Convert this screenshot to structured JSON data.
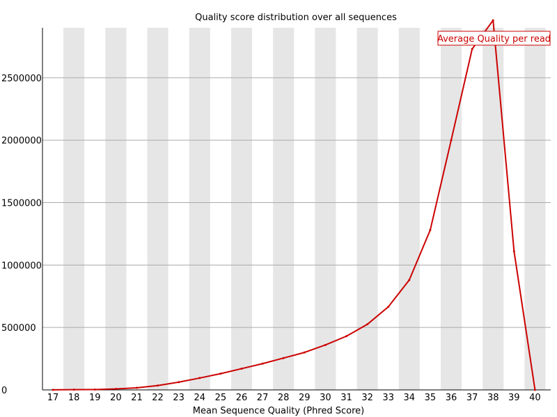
{
  "chart_data": {
    "type": "line",
    "title": "Quality score distribution over all sequences",
    "xlabel": "Mean Sequence Quality (Phred Score)",
    "ylabel": "",
    "x": [
      17,
      18,
      19,
      20,
      21,
      22,
      23,
      24,
      25,
      26,
      27,
      28,
      29,
      30,
      31,
      32,
      33,
      34,
      35,
      36,
      37,
      38,
      39,
      40
    ],
    "x_tick_labels": [
      "17",
      "18",
      "19",
      "20",
      "21",
      "22",
      "23",
      "24",
      "25",
      "26",
      "27",
      "28",
      "29",
      "30",
      "31",
      "32",
      "33",
      "34",
      "35",
      "36",
      "37",
      "38",
      "39",
      "40"
    ],
    "xlim": [
      16.5,
      40.75
    ],
    "ylim": [
      0,
      2900000
    ],
    "y_ticks": [
      0,
      500000,
      1000000,
      1500000,
      2000000,
      2500000
    ],
    "y_tick_labels": [
      "0",
      "500000",
      "1000000",
      "1500000",
      "2000000",
      "2500000"
    ],
    "series": [
      {
        "name": "Average Quality per read",
        "color": "#cc0000",
        "values": [
          1000,
          2000,
          3000,
          8000,
          17000,
          35000,
          62000,
          95000,
          130000,
          170000,
          210000,
          255000,
          300000,
          360000,
          430000,
          525000,
          665000,
          880000,
          1280000,
          2000000,
          2730000,
          2960000,
          1110000,
          0
        ]
      }
    ],
    "grid": true,
    "band_color": "#e6e6e6",
    "gridline_color": "#aaaaaa",
    "legend_position": "top-right",
    "legend_border_color": "#cc0000"
  }
}
